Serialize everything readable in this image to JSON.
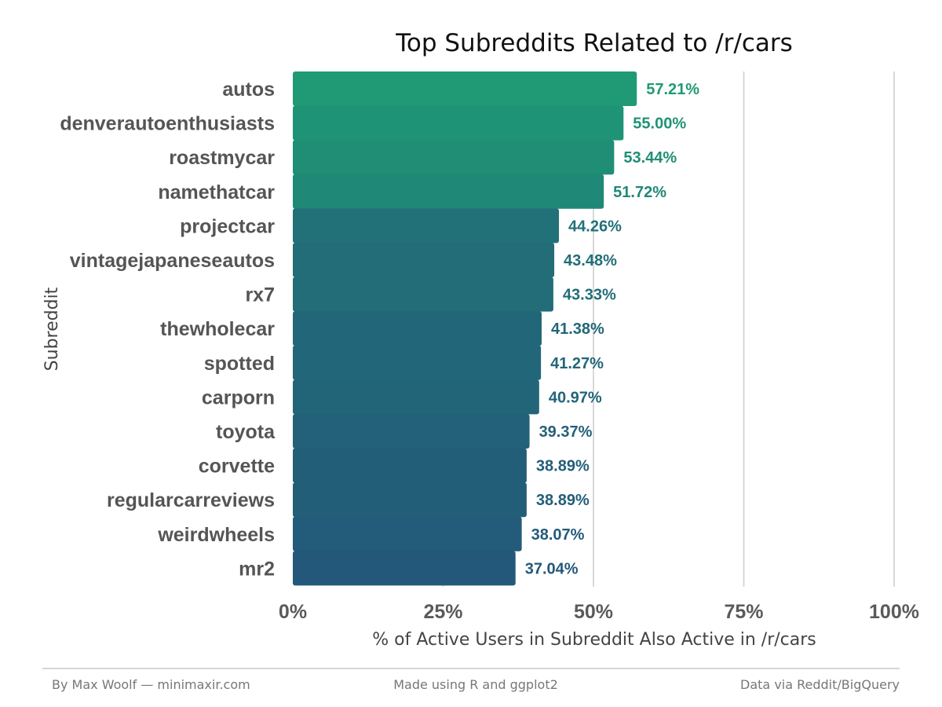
{
  "chart_data": {
    "type": "bar",
    "orientation": "horizontal",
    "title": "Top Subreddits Related to /r/cars",
    "xlabel": "% of Active Users in Subreddit Also Active in /r/cars",
    "ylabel": "Subreddit",
    "categories": [
      "autos",
      "denverautoenthusiasts",
      "roastmycar",
      "namethatcar",
      "projectcar",
      "vintagejapaneseautos",
      "rx7",
      "thewholecar",
      "spotted",
      "carporn",
      "toyota",
      "corvette",
      "regularcarreviews",
      "weirdwheels",
      "mr2"
    ],
    "values": [
      57.21,
      55.0,
      53.44,
      51.72,
      44.26,
      43.48,
      43.33,
      41.38,
      41.27,
      40.97,
      39.37,
      38.89,
      38.89,
      38.07,
      37.04
    ],
    "value_labels": [
      "57.21%",
      "55.00%",
      "53.44%",
      "51.72%",
      "44.26%",
      "43.48%",
      "43.33%",
      "41.38%",
      "41.27%",
      "40.97%",
      "39.37%",
      "38.89%",
      "38.89%",
      "38.07%",
      "37.04%"
    ],
    "xlim": [
      0,
      100
    ],
    "x_ticks": [
      0,
      25,
      50,
      75,
      100
    ],
    "x_tick_labels": [
      "0%",
      "25%",
      "50%",
      "75%",
      "100%"
    ],
    "grid": "vertical major gridlines",
    "color_scale": {
      "low": "#23587a",
      "high": "#1f9a74"
    }
  },
  "footer": {
    "left": "By Max Woolf — minimaxir.com",
    "center": "Made using R and ggplot2",
    "right": "Data via Reddit/BigQuery"
  }
}
